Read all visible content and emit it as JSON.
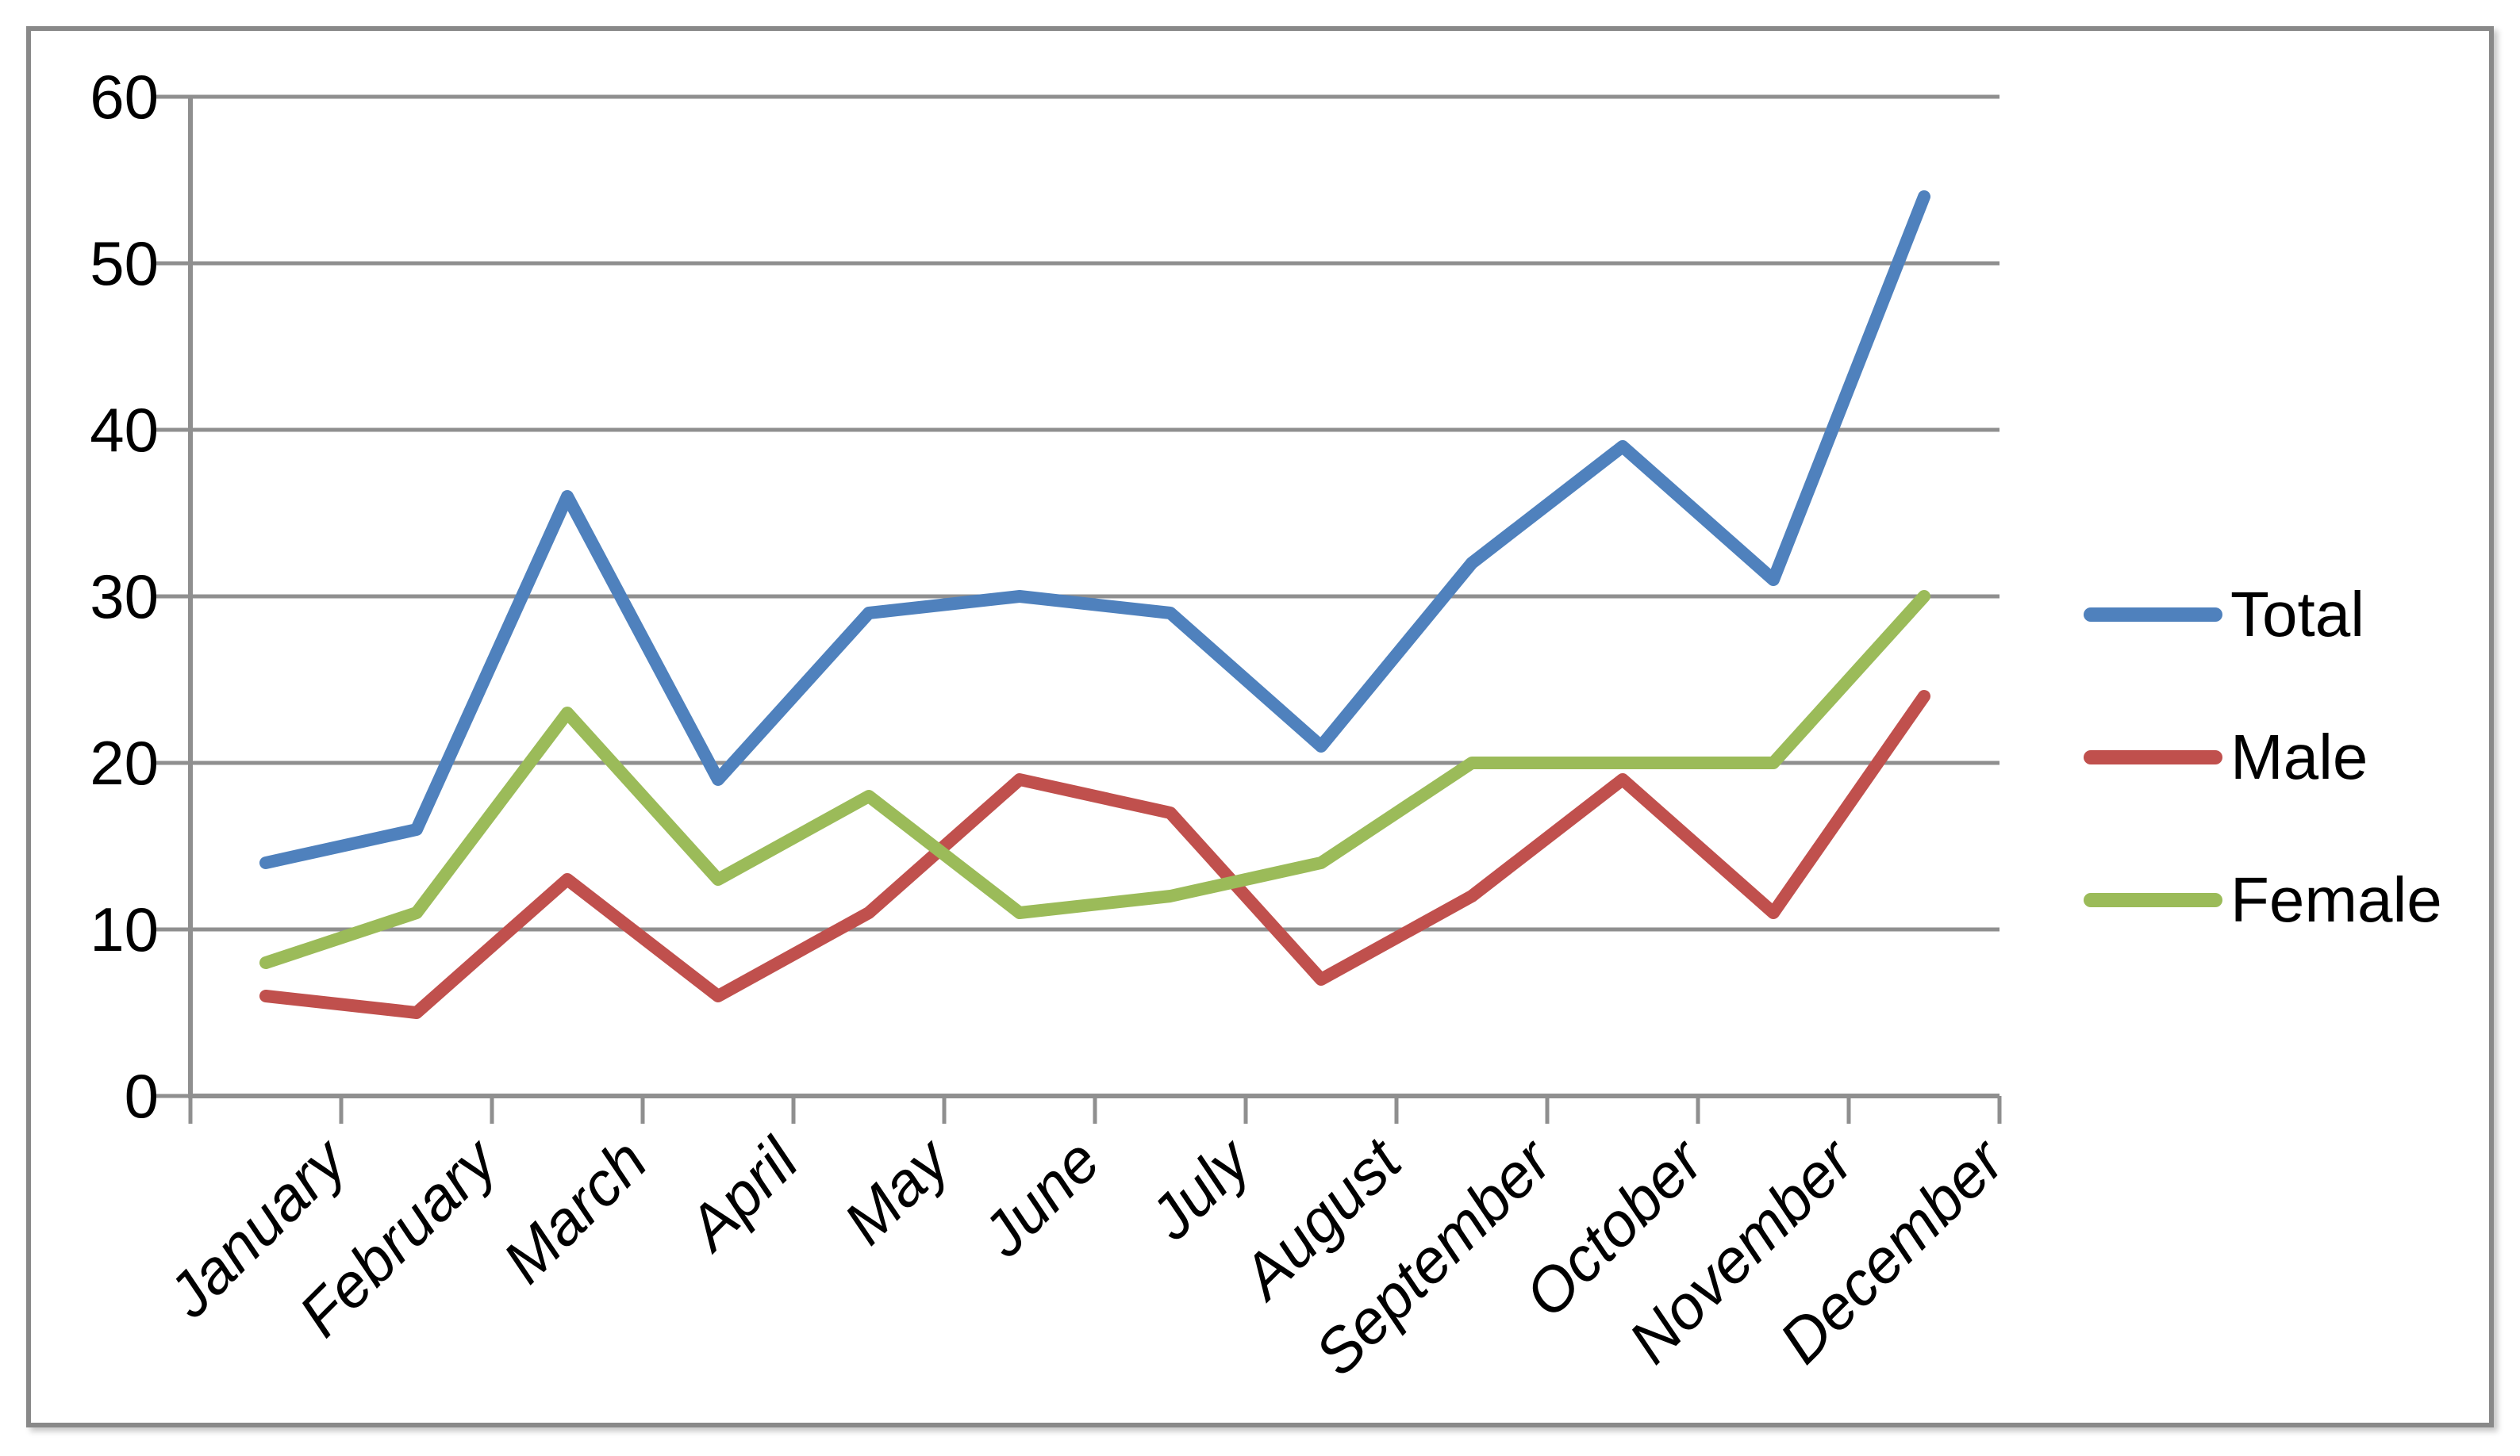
{
  "chart_data": {
    "type": "line",
    "title": "",
    "xlabel": "",
    "ylabel": "",
    "categories": [
      "January",
      "February",
      "March",
      "April",
      "May",
      "June",
      "July",
      "August",
      "September",
      "October",
      "November",
      "December"
    ],
    "series": [
      {
        "name": "Total",
        "color": "#4F81BD",
        "values": [
          14,
          16,
          36,
          19,
          29,
          30,
          29,
          21,
          32,
          39,
          31,
          54
        ]
      },
      {
        "name": "Male",
        "color": "#C0504D",
        "values": [
          6,
          5,
          13,
          6,
          11,
          19,
          17,
          7,
          12,
          19,
          11,
          24
        ]
      },
      {
        "name": "Female",
        "color": "#9BBB59",
        "values": [
          8,
          11,
          23,
          13,
          18,
          11,
          12,
          14,
          20,
          20,
          20,
          30
        ]
      }
    ],
    "ylim": [
      0,
      60
    ],
    "yticks": [
      0,
      10,
      20,
      30,
      40,
      50,
      60
    ],
    "grid": "horizontal",
    "legend_position": "right",
    "x_tick_label_rotation_deg": -45,
    "x_tick_label_style": "italic"
  },
  "colors": {
    "background": "#FFFFFF",
    "border": "#898989",
    "gridline": "#8F8F8F",
    "axis": "#8F8F8F",
    "text": "#000000"
  }
}
